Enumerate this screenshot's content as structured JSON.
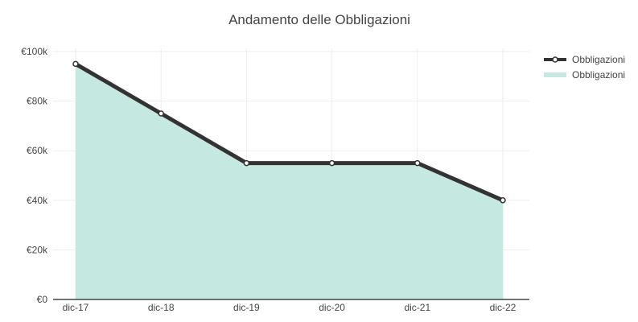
{
  "chart_data": {
    "type": "area",
    "title": "Andamento delle Obbligazioni",
    "categories": [
      "dic-17",
      "dic-18",
      "dic-19",
      "dic-20",
      "dic-21",
      "dic-22"
    ],
    "series": [
      {
        "name": "Obbligazioni",
        "kind": "line",
        "values": [
          95000,
          75000,
          55000,
          55000,
          55000,
          40000
        ],
        "color": "#333333"
      },
      {
        "name": "Obbligazioni",
        "kind": "area",
        "values": [
          95000,
          75000,
          55000,
          55000,
          55000,
          40000
        ],
        "color": "#c5e8e1"
      }
    ],
    "yticks": [
      "€0",
      "€20k",
      "€40k",
      "€60k",
      "€80k",
      "€100k"
    ],
    "ylim": [
      0,
      100000
    ],
    "grid": true,
    "legend_position": "top-right"
  }
}
